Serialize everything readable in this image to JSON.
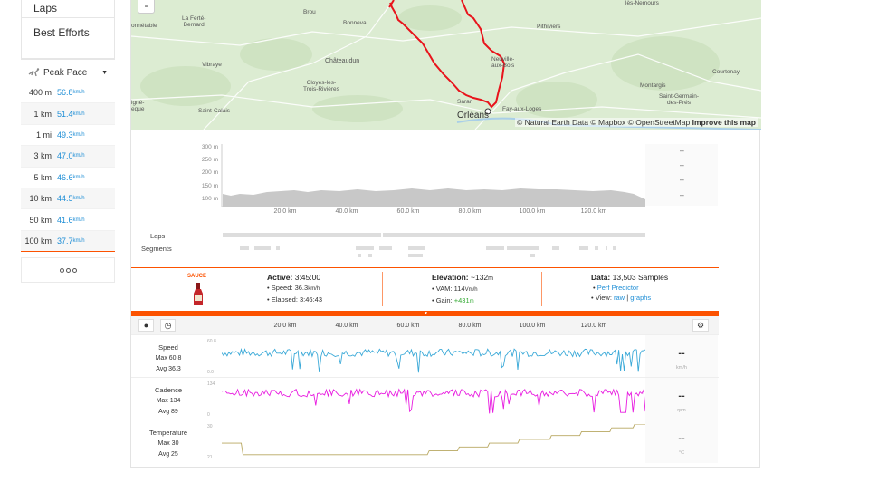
{
  "sidebar": {
    "menu": [
      {
        "label": "Laps"
      },
      {
        "label": "Best Efforts"
      }
    ],
    "peak": {
      "title": "Peak Pace",
      "icon": "runner-icon",
      "rows": [
        {
          "dist": "400 m",
          "value": "56.8",
          "unit": "km/h"
        },
        {
          "dist": "1 km",
          "value": "51.4",
          "unit": "km/h"
        },
        {
          "dist": "1 mi",
          "value": "49.3",
          "unit": "km/h"
        },
        {
          "dist": "3 km",
          "value": "47.0",
          "unit": "km/h"
        },
        {
          "dist": "5 km",
          "value": "46.6",
          "unit": "km/h"
        },
        {
          "dist": "10 km",
          "value": "44.5",
          "unit": "km/h"
        },
        {
          "dist": "50 km",
          "value": "41.6",
          "unit": "km/h"
        },
        {
          "dist": "100 km",
          "value": "37.7",
          "unit": "km/h"
        }
      ]
    }
  },
  "map": {
    "zoom_out": "-",
    "attribution_prefix": "© Natural Earth Data © Mapbox © OpenStreetMap",
    "attribution_link": "Improve this map",
    "places": [
      "Brou",
      "Bonneval",
      "La Ferté-\nBernard",
      "onnétable",
      "Châteaudun",
      "Vibraye",
      "Pithiviers",
      "Cloyes-les-\nTrois-Rivières",
      "Neuville-\naux-Bois",
      "Courtenay",
      "Montargis",
      "Saint-Germain-\ndes-Prés",
      "igné-\neque",
      "Saint-Calais",
      "Saran",
      "Fay-aux-Loges",
      "Orléans",
      "lès-Nemours"
    ]
  },
  "elevation": {
    "yticks": [
      "300 m",
      "250 m",
      "200 m",
      "150 m",
      "100 m"
    ],
    "xticks": [
      "20.0 km",
      "40.0 km",
      "60.0 km",
      "80.0 km",
      "100.0 km",
      "120.0 km"
    ],
    "right_values": [
      "--",
      "--",
      "--",
      "--"
    ],
    "laps_label": "Laps",
    "segments_label": "Segments"
  },
  "summary": {
    "brand": "SAUCE",
    "active_label": "Active:",
    "active_value": "3:45:00",
    "speed_label": "• Speed:",
    "speed_value": "36.3",
    "speed_unit": "km/h",
    "elapsed_label": "• Elapsed:",
    "elapsed_value": "3:46:43",
    "elev_label": "Elevation:",
    "elev_value": "~132",
    "elev_unit": "m",
    "vam_label": "• VAM:",
    "vam_value": "114",
    "vam_unit": "Vm/h",
    "gain_label": "• Gain:",
    "gain_value": "+431",
    "gain_unit": "m",
    "data_label": "Data:",
    "data_value": "13,503 Samples",
    "perf_bullet": "•",
    "perf_link": "Perf Predictor",
    "view_label": "• View:",
    "view_raw": "raw",
    "view_sep": "|",
    "view_graphs": "graphs"
  },
  "streams": {
    "xticks": [
      "20.0 km",
      "40.0 km",
      "60.0 km",
      "80.0 km",
      "100.0 km",
      "120.0 km"
    ],
    "rows": [
      {
        "name": "Speed",
        "max": "Max 60.8",
        "avg": "Avg 36.3",
        "ytop": "60.8",
        "ybot": "0.0",
        "value": "--",
        "unit": "km/h",
        "color": "#3aa9d8",
        "min": 0,
        "maxv": 60.8,
        "mean": 36.3
      },
      {
        "name": "Cadence",
        "max": "Max 134",
        "avg": "Avg 89",
        "ytop": "134",
        "ybot": "0",
        "value": "--",
        "unit": "rpm",
        "color": "#e81be0",
        "min": 0,
        "maxv": 134,
        "mean": 89
      },
      {
        "name": "Temperature",
        "max": "Max 30",
        "avg": "Avg 25",
        "ytop": "30",
        "ybot": "21",
        "value": "--",
        "unit": "°C",
        "color": "#b8a760",
        "min": 21,
        "maxv": 30,
        "mean": 25
      }
    ]
  }
}
